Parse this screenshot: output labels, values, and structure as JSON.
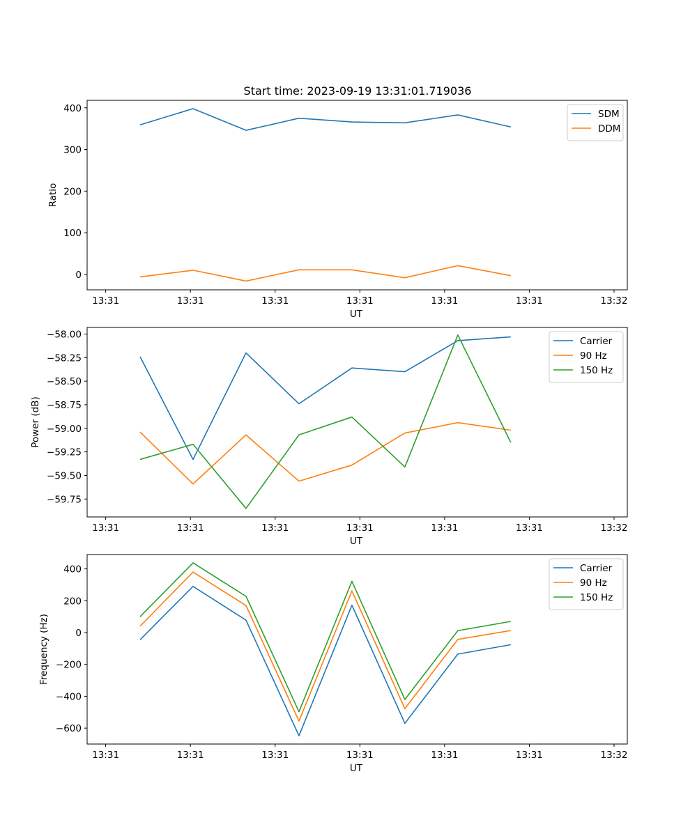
{
  "figure_title": "Start time: 2023-09-19 13:31:01.719036",
  "chart_data": [
    {
      "type": "line",
      "title": "Start time: 2023-09-19 13:31:01.719036",
      "xlabel": "UT",
      "ylabel": "Ratio",
      "x": [
        1,
        2,
        3,
        4,
        5,
        6,
        7,
        8
      ],
      "xlim": [
        0,
        10.2
      ],
      "xticks": [
        0.35,
        1.95,
        3.55,
        5.15,
        6.75,
        8.35,
        9.95
      ],
      "xticklabels": [
        "13:31",
        "13:31",
        "13:31",
        "13:31",
        "13:31",
        "13:31",
        "13:32"
      ],
      "ylim": [
        -37,
        418
      ],
      "yticks": [
        0,
        100,
        200,
        300,
        400
      ],
      "yticklabels": [
        "0",
        "100",
        "200",
        "300",
        "400"
      ],
      "legend_position": "top-right",
      "series": [
        {
          "name": "SDM",
          "color": "#1f77b4",
          "values": [
            359,
            398,
            346,
            375,
            366,
            364,
            383,
            354
          ]
        },
        {
          "name": "DDM",
          "color": "#ff7f0e",
          "values": [
            -6,
            10,
            -16,
            11,
            11,
            -8,
            21,
            -3
          ]
        }
      ]
    },
    {
      "type": "line",
      "title": "",
      "xlabel": "UT",
      "ylabel": "Power (dB)",
      "x": [
        1,
        2,
        3,
        4,
        5,
        6,
        7,
        8
      ],
      "xlim": [
        0,
        10.2
      ],
      "xticks": [
        0.35,
        1.95,
        3.55,
        5.15,
        6.75,
        8.35,
        9.95
      ],
      "xticklabels": [
        "13:31",
        "13:31",
        "13:31",
        "13:31",
        "13:31",
        "13:31",
        "13:32"
      ],
      "ylim": [
        -59.94,
        -57.93
      ],
      "yticks": [
        -59.75,
        -59.5,
        -59.25,
        -59.0,
        -58.75,
        -58.5,
        -58.25,
        -58.0
      ],
      "yticklabels": [
        "−59.75",
        "−59.50",
        "−59.25",
        "−59.00",
        "−58.75",
        "−58.50",
        "−58.25",
        "−58.00"
      ],
      "legend_position": "top-right",
      "series": [
        {
          "name": "Carrier",
          "color": "#1f77b4",
          "values": [
            -58.24,
            -59.33,
            -58.2,
            -58.74,
            -58.36,
            -58.4,
            -58.07,
            -58.03
          ]
        },
        {
          "name": "90 Hz",
          "color": "#ff7f0e",
          "values": [
            -59.04,
            -59.59,
            -59.07,
            -59.56,
            -59.39,
            -59.05,
            -58.94,
            -59.02
          ]
        },
        {
          "name": "150 Hz",
          "color": "#2ca02c",
          "values": [
            -59.33,
            -59.17,
            -59.85,
            -59.07,
            -58.88,
            -59.41,
            -58.01,
            -59.15
          ]
        }
      ]
    },
    {
      "type": "line",
      "title": "",
      "xlabel": "UT",
      "ylabel": "Frequency (Hz)",
      "x": [
        1,
        2,
        3,
        4,
        5,
        6,
        7,
        8
      ],
      "xlim": [
        0,
        10.2
      ],
      "xticks": [
        0.35,
        1.95,
        3.55,
        5.15,
        6.75,
        8.35,
        9.95
      ],
      "xticklabels": [
        "13:31",
        "13:31",
        "13:31",
        "13:31",
        "13:31",
        "13:31",
        "13:32"
      ],
      "ylim": [
        -700,
        490
      ],
      "yticks": [
        -600,
        -400,
        -200,
        0,
        200,
        400
      ],
      "yticklabels": [
        "−600",
        "−400",
        "−200",
        "0",
        "200",
        "400"
      ],
      "legend_position": "top-right",
      "series": [
        {
          "name": "Carrier",
          "color": "#1f77b4",
          "values": [
            -45,
            290,
            78,
            -648,
            172,
            -570,
            -135,
            -76
          ]
        },
        {
          "name": "90 Hz",
          "color": "#ff7f0e",
          "values": [
            40,
            380,
            170,
            -556,
            262,
            -478,
            -43,
            13
          ]
        },
        {
          "name": "150 Hz",
          "color": "#2ca02c",
          "values": [
            100,
            438,
            228,
            -497,
            322,
            -420,
            12,
            70
          ]
        }
      ]
    }
  ]
}
